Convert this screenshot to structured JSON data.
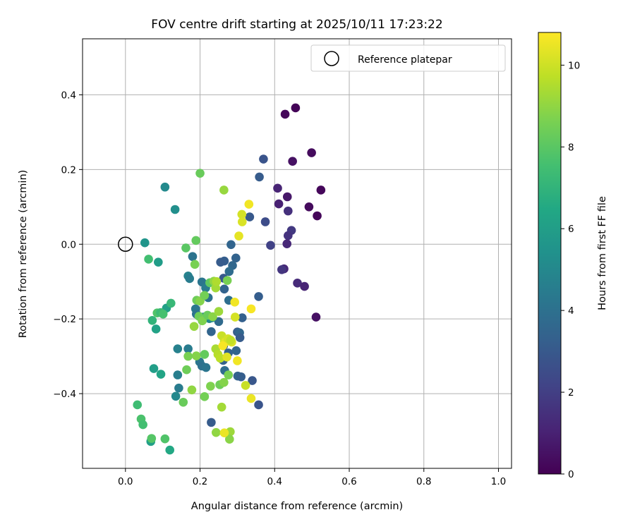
{
  "chart_data": {
    "type": "scatter",
    "title": "FOV centre drift starting at 2025/10/11 17:23:22",
    "xlabel": "Angular distance from reference (arcmin)",
    "ylabel": "Rotation from reference (arcmin)",
    "xlim": [
      -0.115,
      1.035
    ],
    "ylim": [
      -0.6,
      0.55
    ],
    "xticks": [
      0.0,
      0.2,
      0.4,
      0.6,
      0.8,
      1.0
    ],
    "xtick_labels": [
      "0.0",
      "0.2",
      "0.4",
      "0.6",
      "0.8",
      "1.0"
    ],
    "yticks": [
      -0.4,
      -0.2,
      0.0,
      0.2,
      0.4
    ],
    "ytick_labels": [
      "−0.4",
      "−0.2",
      "0.0",
      "0.2",
      "0.4"
    ],
    "grid": true,
    "legend": {
      "position": "top-right",
      "entries": [
        "Reference platepar"
      ]
    },
    "reference_point": {
      "x": 0.0,
      "y": 0.0
    },
    "colorbar": {
      "label": "Hours from first FF file",
      "min": 0,
      "max": 10.8,
      "ticks": [
        0,
        2,
        4,
        6,
        8,
        10
      ],
      "tick_labels": [
        "0",
        "2",
        "4",
        "6",
        "8",
        "10"
      ],
      "colormap": "viridis"
    },
    "points": [
      {
        "x": 0.456,
        "y": 0.365,
        "c": 0.1
      },
      {
        "x": 0.428,
        "y": 0.348,
        "c": 0.2
      },
      {
        "x": 0.499,
        "y": 0.245,
        "c": 0.3
      },
      {
        "x": 0.448,
        "y": 0.222,
        "c": 0.5
      },
      {
        "x": 0.524,
        "y": 0.145,
        "c": 0.2
      },
      {
        "x": 0.408,
        "y": 0.15,
        "c": 1.1
      },
      {
        "x": 0.434,
        "y": 0.127,
        "c": 0.7
      },
      {
        "x": 0.411,
        "y": 0.108,
        "c": 1.0
      },
      {
        "x": 0.492,
        "y": 0.1,
        "c": 0.3
      },
      {
        "x": 0.514,
        "y": 0.076,
        "c": 0.2
      },
      {
        "x": 0.436,
        "y": 0.089,
        "c": 1.5
      },
      {
        "x": 0.445,
        "y": 0.037,
        "c": 1.8
      },
      {
        "x": 0.436,
        "y": 0.023,
        "c": 1.6
      },
      {
        "x": 0.433,
        "y": 0.001,
        "c": 1.2
      },
      {
        "x": 0.389,
        "y": -0.003,
        "c": 2.1
      },
      {
        "x": 0.425,
        "y": -0.066,
        "c": 1.2
      },
      {
        "x": 0.419,
        "y": -0.068,
        "c": 1.7
      },
      {
        "x": 0.461,
        "y": -0.104,
        "c": 1.3
      },
      {
        "x": 0.48,
        "y": -0.113,
        "c": 1.1
      },
      {
        "x": 0.511,
        "y": -0.195,
        "c": 0.5
      },
      {
        "x": 0.37,
        "y": 0.228,
        "c": 2.8
      },
      {
        "x": 0.359,
        "y": 0.18,
        "c": 3.1
      },
      {
        "x": 0.375,
        "y": 0.06,
        "c": 2.5
      },
      {
        "x": 0.333,
        "y": 0.073,
        "c": 3.0
      },
      {
        "x": 0.357,
        "y": -0.14,
        "c": 3.2
      },
      {
        "x": 0.357,
        "y": -0.43,
        "c": 2.8
      },
      {
        "x": 0.34,
        "y": -0.365,
        "c": 2.9
      },
      {
        "x": 0.283,
        "y": -0.001,
        "c": 3.5
      },
      {
        "x": 0.296,
        "y": -0.037,
        "c": 3.4
      },
      {
        "x": 0.265,
        "y": -0.045,
        "c": 3.2
      },
      {
        "x": 0.255,
        "y": -0.048,
        "c": 3.1
      },
      {
        "x": 0.287,
        "y": -0.057,
        "c": 3.6
      },
      {
        "x": 0.278,
        "y": -0.073,
        "c": 3.8
      },
      {
        "x": 0.263,
        "y": -0.091,
        "c": 3.0
      },
      {
        "x": 0.265,
        "y": -0.12,
        "c": 3.4
      },
      {
        "x": 0.277,
        "y": -0.15,
        "c": 3.9
      },
      {
        "x": 0.313,
        "y": -0.197,
        "c": 3.3
      },
      {
        "x": 0.25,
        "y": -0.207,
        "c": 3.7
      },
      {
        "x": 0.23,
        "y": -0.234,
        "c": 3.5
      },
      {
        "x": 0.3,
        "y": -0.235,
        "c": 3.2
      },
      {
        "x": 0.306,
        "y": -0.237,
        "c": 3.6
      },
      {
        "x": 0.307,
        "y": -0.25,
        "c": 3.1
      },
      {
        "x": 0.263,
        "y": -0.272,
        "c": 3.3
      },
      {
        "x": 0.297,
        "y": -0.285,
        "c": 3.5
      },
      {
        "x": 0.276,
        "y": -0.291,
        "c": 3.4
      },
      {
        "x": 0.262,
        "y": -0.311,
        "c": 3.3
      },
      {
        "x": 0.266,
        "y": -0.338,
        "c": 3.8
      },
      {
        "x": 0.301,
        "y": -0.353,
        "c": 3.4
      },
      {
        "x": 0.31,
        "y": -0.355,
        "c": 3.2
      },
      {
        "x": 0.23,
        "y": -0.477,
        "c": 3.1
      },
      {
        "x": 0.18,
        "y": -0.033,
        "c": 4.1
      },
      {
        "x": 0.168,
        "y": -0.085,
        "c": 4.8
      },
      {
        "x": 0.172,
        "y": -0.092,
        "c": 4.5
      },
      {
        "x": 0.205,
        "y": -0.101,
        "c": 4.2
      },
      {
        "x": 0.215,
        "y": -0.117,
        "c": 4.5
      },
      {
        "x": 0.222,
        "y": -0.143,
        "c": 4.0
      },
      {
        "x": 0.188,
        "y": -0.173,
        "c": 4.3
      },
      {
        "x": 0.19,
        "y": -0.187,
        "c": 4.1
      },
      {
        "x": 0.209,
        "y": -0.195,
        "c": 4.6
      },
      {
        "x": 0.225,
        "y": -0.199,
        "c": 4.9
      },
      {
        "x": 0.232,
        "y": -0.197,
        "c": 5.2
      },
      {
        "x": 0.168,
        "y": -0.28,
        "c": 4.5
      },
      {
        "x": 0.199,
        "y": -0.315,
        "c": 4.2
      },
      {
        "x": 0.205,
        "y": -0.326,
        "c": 4.0
      },
      {
        "x": 0.216,
        "y": -0.33,
        "c": 4.2
      },
      {
        "x": 0.14,
        "y": -0.28,
        "c": 4.7
      },
      {
        "x": 0.14,
        "y": -0.35,
        "c": 4.6
      },
      {
        "x": 0.143,
        "y": -0.385,
        "c": 4.5
      },
      {
        "x": 0.135,
        "y": -0.407,
        "c": 5.0
      },
      {
        "x": 0.106,
        "y": 0.153,
        "c": 5.1
      },
      {
        "x": 0.133,
        "y": 0.093,
        "c": 5.3
      },
      {
        "x": 0.052,
        "y": 0.004,
        "c": 5.6
      },
      {
        "x": 0.088,
        "y": -0.048,
        "c": 5.9
      },
      {
        "x": 0.11,
        "y": -0.171,
        "c": 6.1
      },
      {
        "x": 0.082,
        "y": -0.227,
        "c": 6.2
      },
      {
        "x": 0.076,
        "y": -0.333,
        "c": 6.0
      },
      {
        "x": 0.095,
        "y": -0.348,
        "c": 6.3
      },
      {
        "x": 0.068,
        "y": -0.528,
        "c": 6.1
      },
      {
        "x": 0.119,
        "y": -0.551,
        "c": 6.5
      },
      {
        "x": 0.062,
        "y": -0.04,
        "c": 7.5
      },
      {
        "x": 0.072,
        "y": -0.204,
        "c": 7.0
      },
      {
        "x": 0.085,
        "y": -0.184,
        "c": 7.8
      },
      {
        "x": 0.094,
        "y": -0.183,
        "c": 7.3
      },
      {
        "x": 0.101,
        "y": -0.187,
        "c": 7.6
      },
      {
        "x": 0.122,
        "y": -0.158,
        "c": 7.2
      },
      {
        "x": 0.032,
        "y": -0.43,
        "c": 7.4
      },
      {
        "x": 0.042,
        "y": -0.468,
        "c": 7.7
      },
      {
        "x": 0.047,
        "y": -0.483,
        "c": 7.5
      },
      {
        "x": 0.07,
        "y": -0.52,
        "c": 7.9
      },
      {
        "x": 0.106,
        "y": -0.521,
        "c": 7.8
      },
      {
        "x": 0.162,
        "y": -0.01,
        "c": 8.0
      },
      {
        "x": 0.189,
        "y": 0.01,
        "c": 8.2
      },
      {
        "x": 0.2,
        "y": 0.19,
        "c": 8.3
      },
      {
        "x": 0.186,
        "y": -0.054,
        "c": 8.6
      },
      {
        "x": 0.191,
        "y": -0.15,
        "c": 8.4
      },
      {
        "x": 0.2,
        "y": -0.152,
        "c": 8.8
      },
      {
        "x": 0.212,
        "y": -0.137,
        "c": 8.5
      },
      {
        "x": 0.226,
        "y": -0.103,
        "c": 8.1
      },
      {
        "x": 0.237,
        "y": -0.099,
        "c": 9.0
      },
      {
        "x": 0.242,
        "y": -0.117,
        "c": 9.3
      },
      {
        "x": 0.244,
        "y": -0.1,
        "c": 9.5
      },
      {
        "x": 0.273,
        "y": -0.097,
        "c": 8.6
      },
      {
        "x": 0.197,
        "y": -0.193,
        "c": 8.4
      },
      {
        "x": 0.206,
        "y": -0.205,
        "c": 8.7
      },
      {
        "x": 0.22,
        "y": -0.19,
        "c": 8.3
      },
      {
        "x": 0.234,
        "y": -0.194,
        "c": 8.9
      },
      {
        "x": 0.25,
        "y": -0.18,
        "c": 9.2
      },
      {
        "x": 0.184,
        "y": -0.22,
        "c": 9.1
      },
      {
        "x": 0.19,
        "y": -0.299,
        "c": 8.8
      },
      {
        "x": 0.212,
        "y": -0.295,
        "c": 8.2
      },
      {
        "x": 0.168,
        "y": -0.3,
        "c": 8.6
      },
      {
        "x": 0.164,
        "y": -0.336,
        "c": 8.4
      },
      {
        "x": 0.178,
        "y": -0.39,
        "c": 9.0
      },
      {
        "x": 0.155,
        "y": -0.423,
        "c": 8.3
      },
      {
        "x": 0.212,
        "y": -0.408,
        "c": 8.5
      },
      {
        "x": 0.228,
        "y": -0.38,
        "c": 8.7
      },
      {
        "x": 0.253,
        "y": -0.376,
        "c": 8.4
      },
      {
        "x": 0.264,
        "y": -0.37,
        "c": 8.8
      },
      {
        "x": 0.276,
        "y": -0.35,
        "c": 8.6
      },
      {
        "x": 0.258,
        "y": -0.436,
        "c": 9.3
      },
      {
        "x": 0.243,
        "y": -0.504,
        "c": 9.0
      },
      {
        "x": 0.281,
        "y": -0.502,
        "c": 9.2
      },
      {
        "x": 0.279,
        "y": -0.522,
        "c": 8.9
      },
      {
        "x": 0.264,
        "y": 0.145,
        "c": 9.1
      },
      {
        "x": 0.242,
        "y": -0.28,
        "c": 9.4
      },
      {
        "x": 0.248,
        "y": -0.295,
        "c": 9.6
      },
      {
        "x": 0.254,
        "y": -0.305,
        "c": 9.7
      },
      {
        "x": 0.258,
        "y": -0.245,
        "c": 9.9
      },
      {
        "x": 0.265,
        "y": -0.26,
        "c": 10.0
      },
      {
        "x": 0.268,
        "y": -0.262,
        "c": 10.4
      },
      {
        "x": 0.275,
        "y": -0.253,
        "c": 10.1
      },
      {
        "x": 0.285,
        "y": -0.262,
        "c": 10.2
      },
      {
        "x": 0.282,
        "y": -0.257,
        "c": 9.8
      },
      {
        "x": 0.272,
        "y": -0.302,
        "c": 10.3
      },
      {
        "x": 0.265,
        "y": -0.505,
        "c": 10.5
      },
      {
        "x": 0.261,
        "y": -0.272,
        "c": 10.7
      },
      {
        "x": 0.293,
        "y": -0.155,
        "c": 10.6
      },
      {
        "x": 0.294,
        "y": -0.195,
        "c": 10.1
      },
      {
        "x": 0.322,
        "y": -0.378,
        "c": 9.9
      },
      {
        "x": 0.3,
        "y": -0.312,
        "c": 10.6
      },
      {
        "x": 0.337,
        "y": -0.173,
        "c": 10.7
      },
      {
        "x": 0.337,
        "y": -0.413,
        "c": 10.5
      },
      {
        "x": 0.304,
        "y": 0.022,
        "c": 10.4
      },
      {
        "x": 0.312,
        "y": 0.08,
        "c": 10.1
      },
      {
        "x": 0.313,
        "y": 0.06,
        "c": 10.2
      },
      {
        "x": 0.331,
        "y": 0.107,
        "c": 10.6
      }
    ]
  }
}
